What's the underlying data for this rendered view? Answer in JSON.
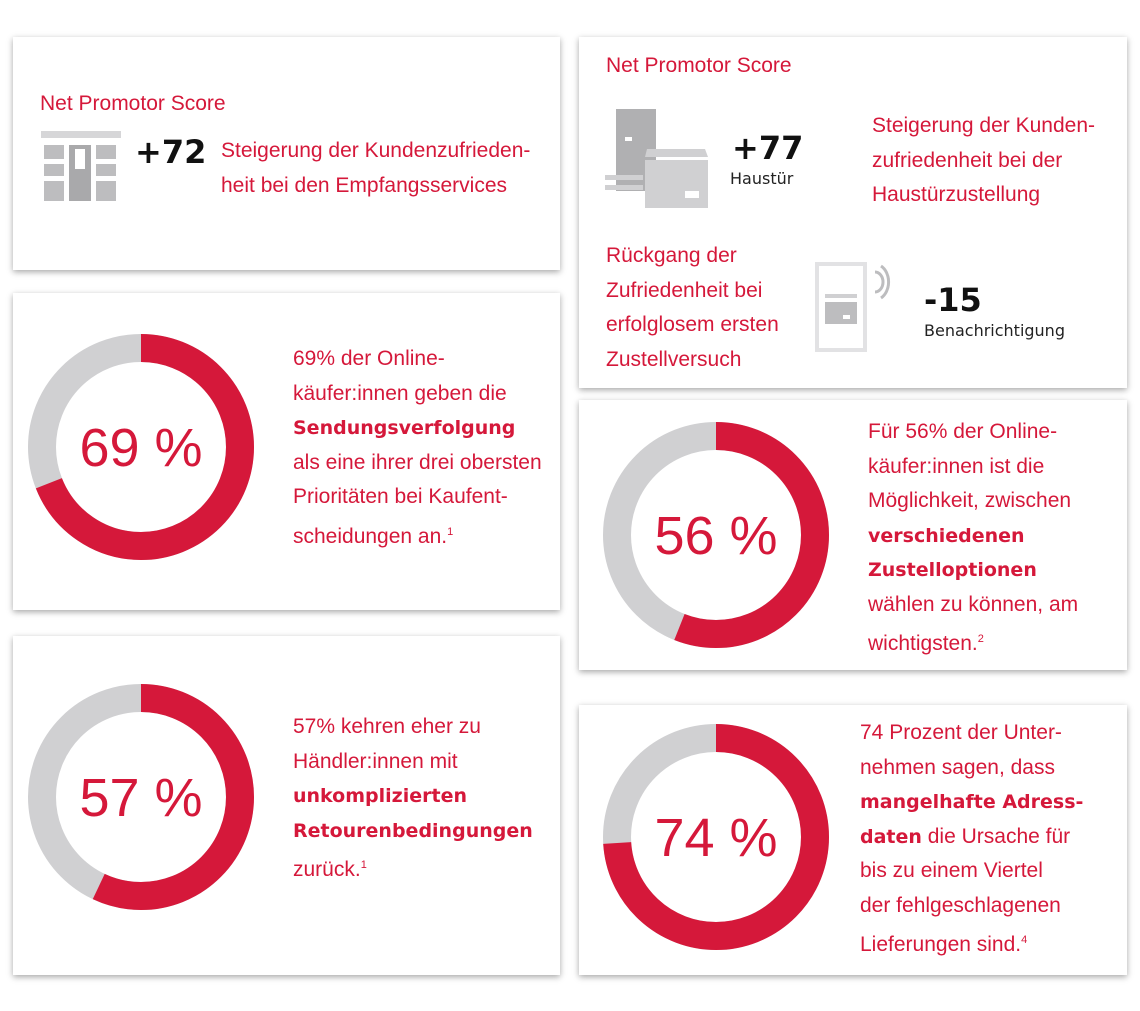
{
  "colors": {
    "accent": "#d5183a",
    "ring": "#d0d0d2",
    "icon": "#bdbdbf"
  },
  "nps1": {
    "title": "Net Promotor Score",
    "value": "+72",
    "lines": [
      [
        {
          "t": "Steigerung der Kundenzufrieden-"
        }
      ],
      [
        {
          "t": "heit bei den Empfangsservices"
        }
      ]
    ]
  },
  "nps2": {
    "title": "Net Promotor Score",
    "value": "+77",
    "value_label": "Haustür",
    "lines": [
      [
        {
          "t": "Steigerung der Kunden-"
        }
      ],
      [
        {
          "t": "zufriedenheit bei der"
        }
      ],
      [
        {
          "t": "Haustürzustellung"
        }
      ]
    ],
    "decline_lines": [
      [
        {
          "t": "Rückgang der"
        }
      ],
      [
        {
          "t": "Zufriedenheit bei"
        }
      ],
      [
        {
          "t": "erfolglosem ersten"
        }
      ],
      [
        {
          "t": "Zustellversuch"
        }
      ]
    ],
    "decline_value": "-15",
    "decline_label": "Benachrichtigung"
  },
  "chart_data": [
    {
      "type": "pie",
      "variant": "donut",
      "label": "69 %",
      "value": 69,
      "lines": [
        [
          {
            "t": "69% der Online-"
          }
        ],
        [
          {
            "t": "käufer:innen geben die"
          }
        ],
        [
          {
            "t": "Sendungsverfolgung",
            "b": true
          }
        ],
        [
          {
            "t": "als eine ihrer drei obersten"
          }
        ],
        [
          {
            "t": "Prioritäten bei Kaufent-"
          }
        ],
        [
          {
            "t": "scheidungen an."
          },
          {
            "t": "1",
            "sup": true
          }
        ]
      ]
    },
    {
      "type": "pie",
      "variant": "donut",
      "label": "56 %",
      "value": 56,
      "lines": [
        [
          {
            "t": "Für 56% der Online-"
          }
        ],
        [
          {
            "t": "käufer:innen ist die"
          }
        ],
        [
          {
            "t": "Möglichkeit, zwischen"
          }
        ],
        [
          {
            "t": "verschiedenen",
            "b": true
          }
        ],
        [
          {
            "t": "Zustelloptionen",
            "b": true
          }
        ],
        [
          {
            "t": "wählen zu können, am"
          }
        ],
        [
          {
            "t": "wichtigsten."
          },
          {
            "t": "2",
            "sup": true
          }
        ]
      ]
    },
    {
      "type": "pie",
      "variant": "donut",
      "label": "57 %",
      "value": 57,
      "lines": [
        [
          {
            "t": "57% kehren eher zu"
          }
        ],
        [
          {
            "t": "Händler:innen mit"
          }
        ],
        [
          {
            "t": "unkomplizierten",
            "b": true
          }
        ],
        [
          {
            "t": "Retourenbedingungen",
            "b": true
          }
        ],
        [
          {
            "t": "zurück."
          },
          {
            "t": "1",
            "sup": true
          }
        ]
      ]
    },
    {
      "type": "pie",
      "variant": "donut",
      "label": "74 %",
      "value": 74,
      "lines": [
        [
          {
            "t": "74 Prozent der Unter-"
          }
        ],
        [
          {
            "t": "nehmen sagen, dass"
          }
        ],
        [
          {
            "t": "mangelhafte Adress-",
            "b": true
          }
        ],
        [
          {
            "t": "daten",
            "b": true
          },
          {
            "t": " die Ursache für"
          }
        ],
        [
          {
            "t": "bis zu einem Viertel"
          }
        ],
        [
          {
            "t": "der fehlgeschlagenen"
          }
        ],
        [
          {
            "t": "Lieferungen sind."
          },
          {
            "t": "4",
            "sup": true
          }
        ]
      ]
    }
  ]
}
